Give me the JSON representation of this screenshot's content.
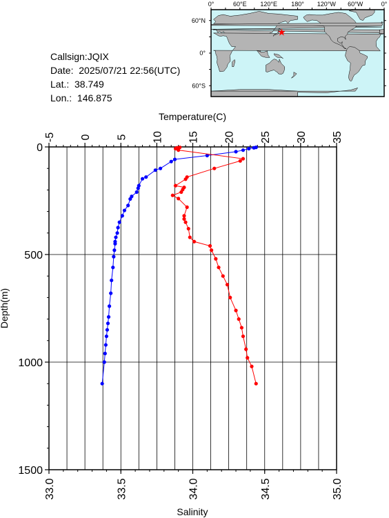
{
  "info": {
    "callsign": "Callsign:JQIX",
    "date": "Date:  2025/07/21 22:56(UTC)",
    "lat": "Lat.:  38.749",
    "lon": "Lon.:  146.875"
  },
  "map": {
    "lon_labels": [
      "0°",
      "60°E",
      "120°E",
      "180°",
      "120°W",
      "60°W",
      "0°"
    ],
    "lat_labels": [
      "60°N",
      "0°",
      "60°S"
    ],
    "ocean_color": "#cdf4f7",
    "land_color": "#b4b4b4",
    "marker": {
      "lat": 38.749,
      "lon": 146.875,
      "color": "#ff0000"
    }
  },
  "chart_data": {
    "type": "line",
    "top_axis_label": "Temperature(C)",
    "bottom_axis_label": "Salinity",
    "left_axis_label": "Depth(m)",
    "temperature_range": [
      -5,
      35
    ],
    "temperature_ticks": [
      "-5",
      "0",
      "5",
      "10",
      "15",
      "20",
      "25",
      "30",
      "35"
    ],
    "salinity_range": [
      33.0,
      35.0
    ],
    "salinity_ticks": [
      "33.0",
      "33.5",
      "34.0",
      "34.5",
      "35.0"
    ],
    "depth_range": [
      0,
      1500
    ],
    "depth_ticks": [
      "0",
      "500",
      "1000",
      "1500"
    ],
    "grid": true,
    "series": [
      {
        "axis": "temperature",
        "color": "#0000ff",
        "points": [
          [
            23.8,
            2
          ],
          [
            23.5,
            4
          ],
          [
            22.8,
            8
          ],
          [
            22.0,
            15
          ],
          [
            21.0,
            22
          ],
          [
            17.0,
            40
          ],
          [
            12.5,
            58
          ],
          [
            12.0,
            68
          ],
          [
            10.5,
            100
          ],
          [
            9.8,
            108
          ],
          [
            8.5,
            140
          ],
          [
            8.0,
            148
          ],
          [
            7.5,
            180
          ],
          [
            7.4,
            192
          ],
          [
            7.2,
            210
          ],
          [
            6.5,
            230
          ],
          [
            6.3,
            242
          ],
          [
            6.0,
            272
          ],
          [
            5.5,
            295
          ],
          [
            5.2,
            320
          ],
          [
            4.8,
            350
          ],
          [
            4.6,
            375
          ],
          [
            4.5,
            400
          ],
          [
            4.3,
            420
          ],
          [
            4.2,
            440
          ],
          [
            4.2,
            450
          ],
          [
            4.1,
            480
          ],
          [
            4.0,
            510
          ],
          [
            3.9,
            560
          ],
          [
            3.7,
            620
          ],
          [
            3.6,
            680
          ],
          [
            3.4,
            740
          ],
          [
            3.3,
            790
          ],
          [
            3.2,
            820
          ],
          [
            3.1,
            850
          ],
          [
            3.0,
            880
          ],
          [
            2.9,
            920
          ],
          [
            2.8,
            960
          ],
          [
            2.7,
            1000
          ],
          [
            2.4,
            1100
          ]
        ]
      },
      {
        "axis": "salinity",
        "color": "#ff0000",
        "points": [
          [
            33.91,
            2
          ],
          [
            33.89,
            4
          ],
          [
            33.88,
            8
          ],
          [
            33.9,
            15
          ],
          [
            34.35,
            55
          ],
          [
            34.33,
            65
          ],
          [
            34.15,
            100
          ],
          [
            33.96,
            140
          ],
          [
            33.95,
            150
          ],
          [
            33.88,
            180
          ],
          [
            33.94,
            188
          ],
          [
            33.93,
            198
          ],
          [
            33.92,
            210
          ],
          [
            33.86,
            225
          ],
          [
            33.9,
            240
          ],
          [
            33.96,
            280
          ],
          [
            33.94,
            320
          ],
          [
            33.94,
            335
          ],
          [
            33.95,
            350
          ],
          [
            33.97,
            380
          ],
          [
            33.98,
            420
          ],
          [
            34.01,
            440
          ],
          [
            34.12,
            460
          ],
          [
            34.13,
            480
          ],
          [
            34.16,
            520
          ],
          [
            34.18,
            560
          ],
          [
            34.21,
            600
          ],
          [
            34.24,
            640
          ],
          [
            34.26,
            700
          ],
          [
            34.3,
            760
          ],
          [
            34.32,
            800
          ],
          [
            34.34,
            840
          ],
          [
            34.35,
            880
          ],
          [
            34.37,
            940
          ],
          [
            34.38,
            980
          ],
          [
            34.41,
            1020
          ],
          [
            34.44,
            1100
          ]
        ]
      }
    ]
  }
}
